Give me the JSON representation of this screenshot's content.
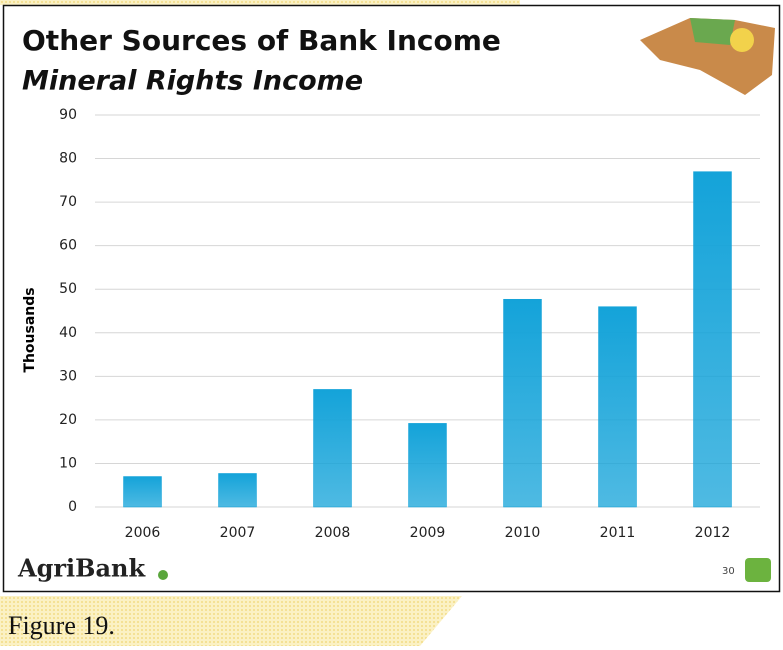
{
  "chart_data": {
    "type": "bar",
    "title": "Other Sources of Bank Income",
    "subtitle": "Mineral Rights Income",
    "y_label": "Thousands",
    "categories": [
      "2006",
      "2007",
      "2008",
      "2009",
      "2010",
      "2011",
      "2012"
    ],
    "values": [
      7,
      7.7,
      27,
      19.2,
      47.7,
      46,
      77
    ],
    "color": "#14a3d9",
    "ylim": [
      0,
      90
    ],
    "yticks": [
      0,
      10,
      20,
      30,
      40,
      50,
      60,
      70,
      80,
      90
    ],
    "grid": true
  },
  "logo": "AgriBank",
  "page_number": "30",
  "caption": "Figure 19."
}
